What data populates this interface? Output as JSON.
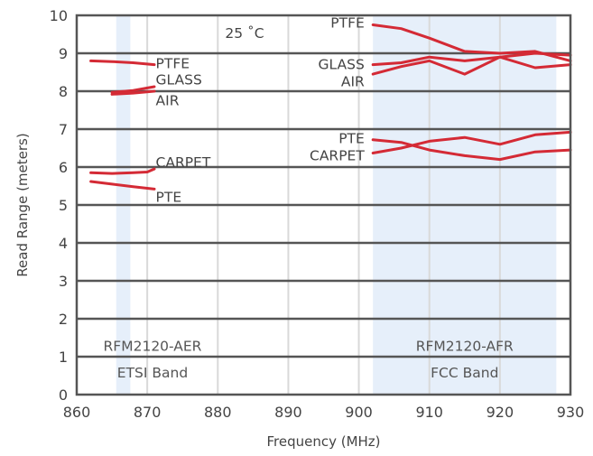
{
  "chart_data": {
    "type": "line",
    "title": "",
    "xlabel": "Frequency (MHz)",
    "ylabel": "Read Range (meters)",
    "xlim": [
      860,
      930
    ],
    "ylim": [
      0,
      10
    ],
    "x_ticks": [
      860,
      870,
      880,
      890,
      900,
      910,
      920,
      930
    ],
    "y_ticks": [
      0,
      1,
      2,
      3,
      4,
      5,
      6,
      7,
      8,
      9,
      10
    ],
    "grid": true,
    "line_color": "#d42a35",
    "band_color": "#e6effa",
    "grid_color": "#d9d9d9",
    "major_grid_color": "#555555",
    "temperature_label": "25 ˚C",
    "bands": [
      {
        "x_range": [
          865.6,
          867.6
        ],
        "name": "RFM2120-AER",
        "sub": "ETSI Band"
      },
      {
        "x_range": [
          902,
          928
        ],
        "name": "RFM2120-AFR",
        "sub": "FCC Band"
      }
    ],
    "series": [
      {
        "name": "PTFE",
        "x": [
          862,
          865,
          868,
          871
        ],
        "y": [
          8.8,
          8.78,
          8.75,
          8.7
        ]
      },
      {
        "name": "GLASS",
        "x": [
          865,
          868,
          871
        ],
        "y": [
          7.97,
          8.02,
          8.12
        ]
      },
      {
        "name": "AIR",
        "x": [
          865,
          868,
          871
        ],
        "y": [
          7.92,
          7.95,
          8.0
        ]
      },
      {
        "name": "CARPET",
        "x": [
          862,
          865,
          868,
          870,
          871
        ],
        "y": [
          5.85,
          5.83,
          5.85,
          5.87,
          5.95
        ]
      },
      {
        "name": "PTE",
        "x": [
          862,
          865,
          868,
          871
        ],
        "y": [
          5.62,
          5.55,
          5.48,
          5.42
        ]
      },
      {
        "name": "PTFE",
        "x": [
          902,
          906,
          910,
          915,
          920,
          925,
          930
        ],
        "y": [
          9.75,
          9.65,
          9.4,
          9.05,
          9.0,
          9.05,
          8.8
        ]
      },
      {
        "name": "GLASS",
        "x": [
          902,
          906,
          910,
          915,
          920,
          925,
          930
        ],
        "y": [
          8.7,
          8.75,
          8.9,
          8.8,
          8.9,
          9.0,
          8.95
        ]
      },
      {
        "name": "AIR",
        "x": [
          902,
          906,
          910,
          915,
          920,
          925,
          930
        ],
        "y": [
          8.45,
          8.65,
          8.8,
          8.45,
          8.9,
          8.62,
          8.7
        ]
      },
      {
        "name": "PTE",
        "x": [
          902,
          906,
          910,
          915,
          920,
          925,
          930
        ],
        "y": [
          6.72,
          6.65,
          6.45,
          6.3,
          6.2,
          6.4,
          6.45
        ]
      },
      {
        "name": "CARPET",
        "x": [
          902,
          906,
          910,
          915,
          920,
          925,
          930
        ],
        "y": [
          6.37,
          6.5,
          6.68,
          6.78,
          6.6,
          6.85,
          6.92
        ]
      }
    ],
    "annotations": [
      {
        "text": "PTFE",
        "x": 871.2,
        "y": 8.73,
        "anchor": "start"
      },
      {
        "text": "GLASS",
        "x": 871.2,
        "y": 8.3,
        "anchor": "start"
      },
      {
        "text": "AIR",
        "x": 871.2,
        "y": 7.75,
        "anchor": "start"
      },
      {
        "text": "CARPET",
        "x": 871.2,
        "y": 6.12,
        "anchor": "start"
      },
      {
        "text": "PTE",
        "x": 871.2,
        "y": 5.2,
        "anchor": "start"
      },
      {
        "text": "PTFE",
        "x": 900.8,
        "y": 9.8,
        "anchor": "end"
      },
      {
        "text": "GLASS",
        "x": 900.8,
        "y": 8.7,
        "anchor": "end"
      },
      {
        "text": "AIR",
        "x": 900.8,
        "y": 8.25,
        "anchor": "end"
      },
      {
        "text": "PTE",
        "x": 900.8,
        "y": 6.75,
        "anchor": "end"
      },
      {
        "text": "CARPET",
        "x": 900.8,
        "y": 6.3,
        "anchor": "end"
      }
    ]
  }
}
